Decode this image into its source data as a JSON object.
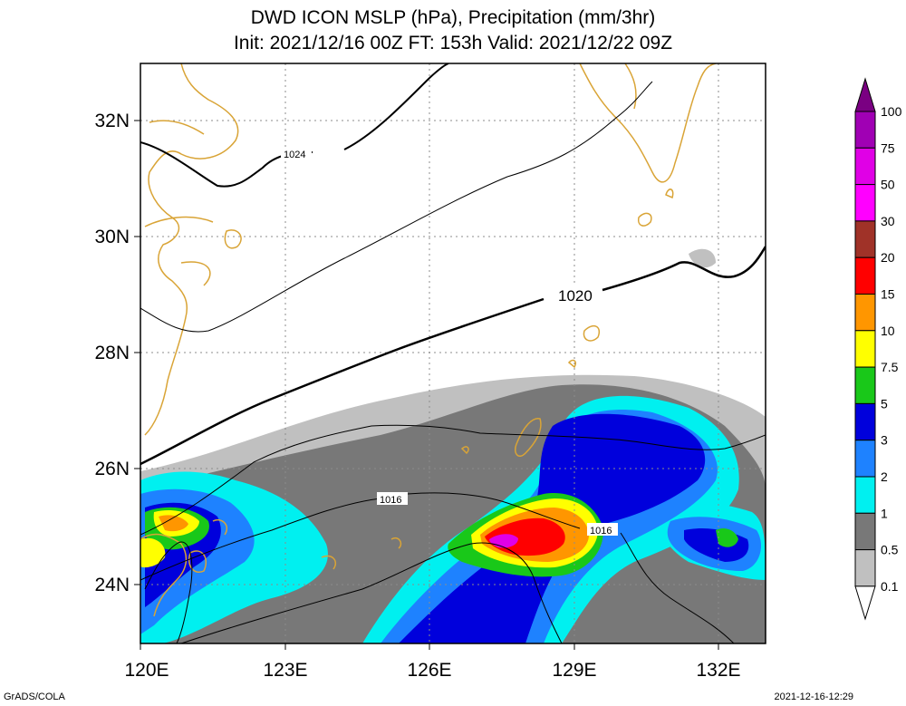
{
  "title": {
    "line1": "DWD ICON MSLP (hPa), Precipitation (mm/3hr)",
    "line2": "Init: 2021/12/16 00Z  FT: 153h  Valid: 2021/12/22 09Z"
  },
  "axes": {
    "lat_labels": [
      "32N",
      "30N",
      "28N",
      "26N",
      "24N"
    ],
    "lon_labels": [
      "120E",
      "123E",
      "126E",
      "129E",
      "132E"
    ]
  },
  "isobars": [
    {
      "value": "1024",
      "label": "1024"
    },
    {
      "value": "1020",
      "label": "1020"
    },
    {
      "value": "1016",
      "label": "1016"
    }
  ],
  "colorbar": {
    "levels": [
      "100",
      "75",
      "50",
      "30",
      "20",
      "15",
      "10",
      "7.5",
      "5",
      "3",
      "2",
      "1",
      "0.5",
      "0.1"
    ],
    "colors": [
      "#7a0082",
      "#a000b4",
      "#e000e6",
      "#ff00ff",
      "#a03228",
      "#ff0000",
      "#ff9600",
      "#ffff00",
      "#19c819",
      "#0000dc",
      "#1e82ff",
      "#00f0f0",
      "#787878",
      "#c0c0c0",
      "#ffffff"
    ]
  },
  "colors": {
    "coast": "#d9a436",
    "grid": "#8c8c8c"
  },
  "footer": {
    "left": "GrADS/COLA",
    "right": "2021-12-16-12:29"
  }
}
